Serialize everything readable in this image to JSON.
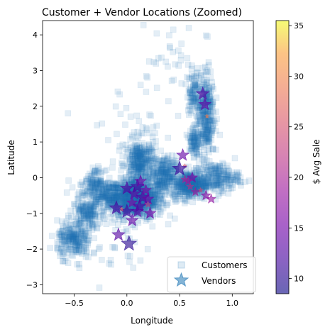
{
  "chart_data": {
    "type": "scatter",
    "title": "Customer + Vendor Locations (Zoomed)",
    "xlabel": "Longitude",
    "ylabel": "Latitude",
    "xlim": [
      -0.8,
      1.2
    ],
    "ylim": [
      -3.25,
      4.4
    ],
    "xticks": [
      -0.5,
      0.0,
      0.5,
      1.0
    ],
    "xtick_labels": [
      "−0.5",
      "0.0",
      "0.5",
      "1.0"
    ],
    "yticks": [
      -3,
      -2,
      -1,
      0,
      1,
      2,
      3,
      4
    ],
    "ytick_labels": [
      "−3",
      "−2",
      "−1",
      "0",
      "1",
      "2",
      "3",
      "4"
    ],
    "grid": false,
    "legend_position": "bottom-right",
    "colorbar": {
      "label": "$ Avg Sale",
      "range": [
        8.5,
        35.5
      ],
      "ticks": [
        10,
        15,
        20,
        25,
        30,
        35
      ],
      "colormap": "plasma"
    },
    "series": [
      {
        "name": "Customers",
        "marker": "square",
        "color": "#1f77b4",
        "alpha": 0.12,
        "clusters": [
          {
            "cx": 0.1,
            "cy": -0.6,
            "rx": 0.26,
            "ry": 0.55,
            "n": 700
          },
          {
            "cx": -0.15,
            "cy": -0.5,
            "rx": 0.28,
            "ry": 0.42,
            "n": 340
          },
          {
            "cx": 0.13,
            "cy": 0.4,
            "rx": 0.14,
            "ry": 0.65,
            "n": 320
          },
          {
            "cx": 0.35,
            "cy": 0.1,
            "rx": 0.12,
            "ry": 0.5,
            "n": 220
          },
          {
            "cx": 0.6,
            "cy": -0.2,
            "rx": 0.17,
            "ry": 0.38,
            "n": 380
          },
          {
            "cx": 0.85,
            "cy": 0.0,
            "rx": 0.22,
            "ry": 0.4,
            "n": 220
          },
          {
            "cx": 0.75,
            "cy": 1.8,
            "rx": 0.08,
            "ry": 1.2,
            "n": 300
          },
          {
            "cx": 0.63,
            "cy": 2.4,
            "rx": 0.06,
            "ry": 0.6,
            "n": 90
          },
          {
            "cx": 0.64,
            "cy": 1.0,
            "rx": 0.05,
            "ry": 0.45,
            "n": 90
          },
          {
            "cx": -0.5,
            "cy": -1.75,
            "rx": 0.16,
            "ry": 0.5,
            "n": 220
          },
          {
            "cx": -0.38,
            "cy": -1.0,
            "rx": 0.14,
            "ry": 0.4,
            "n": 140
          },
          {
            "cx": -0.3,
            "cy": -0.1,
            "rx": 0.09,
            "ry": 0.3,
            "n": 80
          },
          {
            "cx": 0.4,
            "cy": 3.3,
            "rx": 0.3,
            "ry": 1.0,
            "n": 30
          },
          {
            "cx": 0.05,
            "cy": 1.3,
            "rx": 0.5,
            "ry": 1.4,
            "n": 45
          },
          {
            "cx": -0.2,
            "cy": -2.0,
            "rx": 0.5,
            "ry": 0.9,
            "n": 40
          }
        ]
      },
      {
        "name": "Vendors",
        "marker": "star",
        "points": [
          {
            "x": 0.53,
            "y": 0.63,
            "avg_sale": 14
          },
          {
            "x": 0.07,
            "y": -0.45,
            "avg_sale": 14
          },
          {
            "x": 0.15,
            "y": -0.55,
            "avg_sale": 13
          },
          {
            "x": 0.1,
            "y": -0.95,
            "avg_sale": 14
          },
          {
            "x": 0.05,
            "y": -0.7,
            "avg_sale": 16
          },
          {
            "x": 0.2,
            "y": -0.6,
            "avg_sale": 15
          },
          {
            "x": 0.12,
            "y": -0.8,
            "avg_sale": 13
          },
          {
            "x": 0.0,
            "y": -0.95,
            "avg_sale": 12
          },
          {
            "x": -0.05,
            "y": -0.88,
            "avg_sale": 26
          },
          {
            "x": 0.2,
            "y": -0.75,
            "avg_sale": 22
          },
          {
            "x": 0.55,
            "y": 0.33,
            "avg_sale": 25
          },
          {
            "x": 0.55,
            "y": -0.05,
            "avg_sale": 20
          },
          {
            "x": 0.62,
            "y": 0.0,
            "avg_sale": 16
          },
          {
            "x": 0.65,
            "y": -0.4,
            "avg_sale": 19
          },
          {
            "x": 0.7,
            "y": -0.35,
            "avg_sale": 24
          },
          {
            "x": 0.75,
            "y": -0.5,
            "avg_sale": 17
          },
          {
            "x": 0.58,
            "y": -0.1,
            "avg_sale": 19
          },
          {
            "x": 0.76,
            "y": 1.72,
            "avg_sale": 29
          },
          {
            "x": 0.72,
            "y": 2.35,
            "avg_sale": 13
          },
          {
            "x": 0.74,
            "y": 2.05,
            "avg_sale": 14
          },
          {
            "x": -0.08,
            "y": -1.6,
            "avg_sale": 13
          },
          {
            "x": 0.05,
            "y": -1.2,
            "avg_sale": 14
          },
          {
            "x": 0.1,
            "y": -0.25,
            "avg_sale": 12
          },
          {
            "x": 0.02,
            "y": -1.85,
            "avg_sale": 10
          },
          {
            "x": 0.13,
            "y": -0.1,
            "avg_sale": 15
          },
          {
            "x": 0.5,
            "y": 0.25,
            "avg_sale": 11
          },
          {
            "x": 0.22,
            "y": -1.0,
            "avg_sale": 15
          },
          {
            "x": 0.0,
            "y": -0.3,
            "avg_sale": 13
          },
          {
            "x": 0.18,
            "y": -0.35,
            "avg_sale": 16
          },
          {
            "x": -0.1,
            "y": -0.85,
            "avg_sale": 12
          },
          {
            "x": 0.8,
            "y": -0.6,
            "avg_sale": 18
          },
          {
            "x": 0.6,
            "y": -0.25,
            "avg_sale": 21
          }
        ]
      }
    ]
  }
}
